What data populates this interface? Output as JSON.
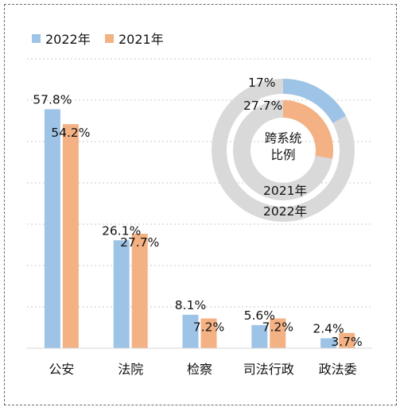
{
  "chart_data": [
    {
      "type": "bar",
      "categories": [
        "公安",
        "法院",
        "检察",
        "司法行政",
        "政法委"
      ],
      "series": [
        {
          "name": "2022年",
          "color": "#9DC3E6",
          "values": [
            57.8,
            26.1,
            8.1,
            5.6,
            2.4
          ]
        },
        {
          "name": "2021年",
          "color": "#F4B183",
          "values": [
            54.2,
            27.7,
            7.2,
            7.2,
            3.7
          ]
        }
      ],
      "value_labels": {
        "2022年": [
          "57.8%",
          "26.1%",
          "8.1%",
          "5.6%",
          "2.4%"
        ],
        "2021年": [
          "54.2%",
          "27.7%",
          "7.2%",
          "7.2%",
          "3.7%"
        ]
      },
      "ylim": [
        0,
        70
      ],
      "grid": true,
      "legend": "top-left"
    },
    {
      "type": "pie",
      "style": "donut",
      "center_label": [
        "跨系统",
        "比例"
      ],
      "rings": [
        {
          "name": "2022年",
          "color": "#9DC3E6",
          "value": 17,
          "label": "17%"
        },
        {
          "name": "2021年",
          "color": "#F4B183",
          "value": 27.7,
          "label": "27.7%"
        }
      ],
      "remainder_color": "#D9D9D9"
    }
  ]
}
